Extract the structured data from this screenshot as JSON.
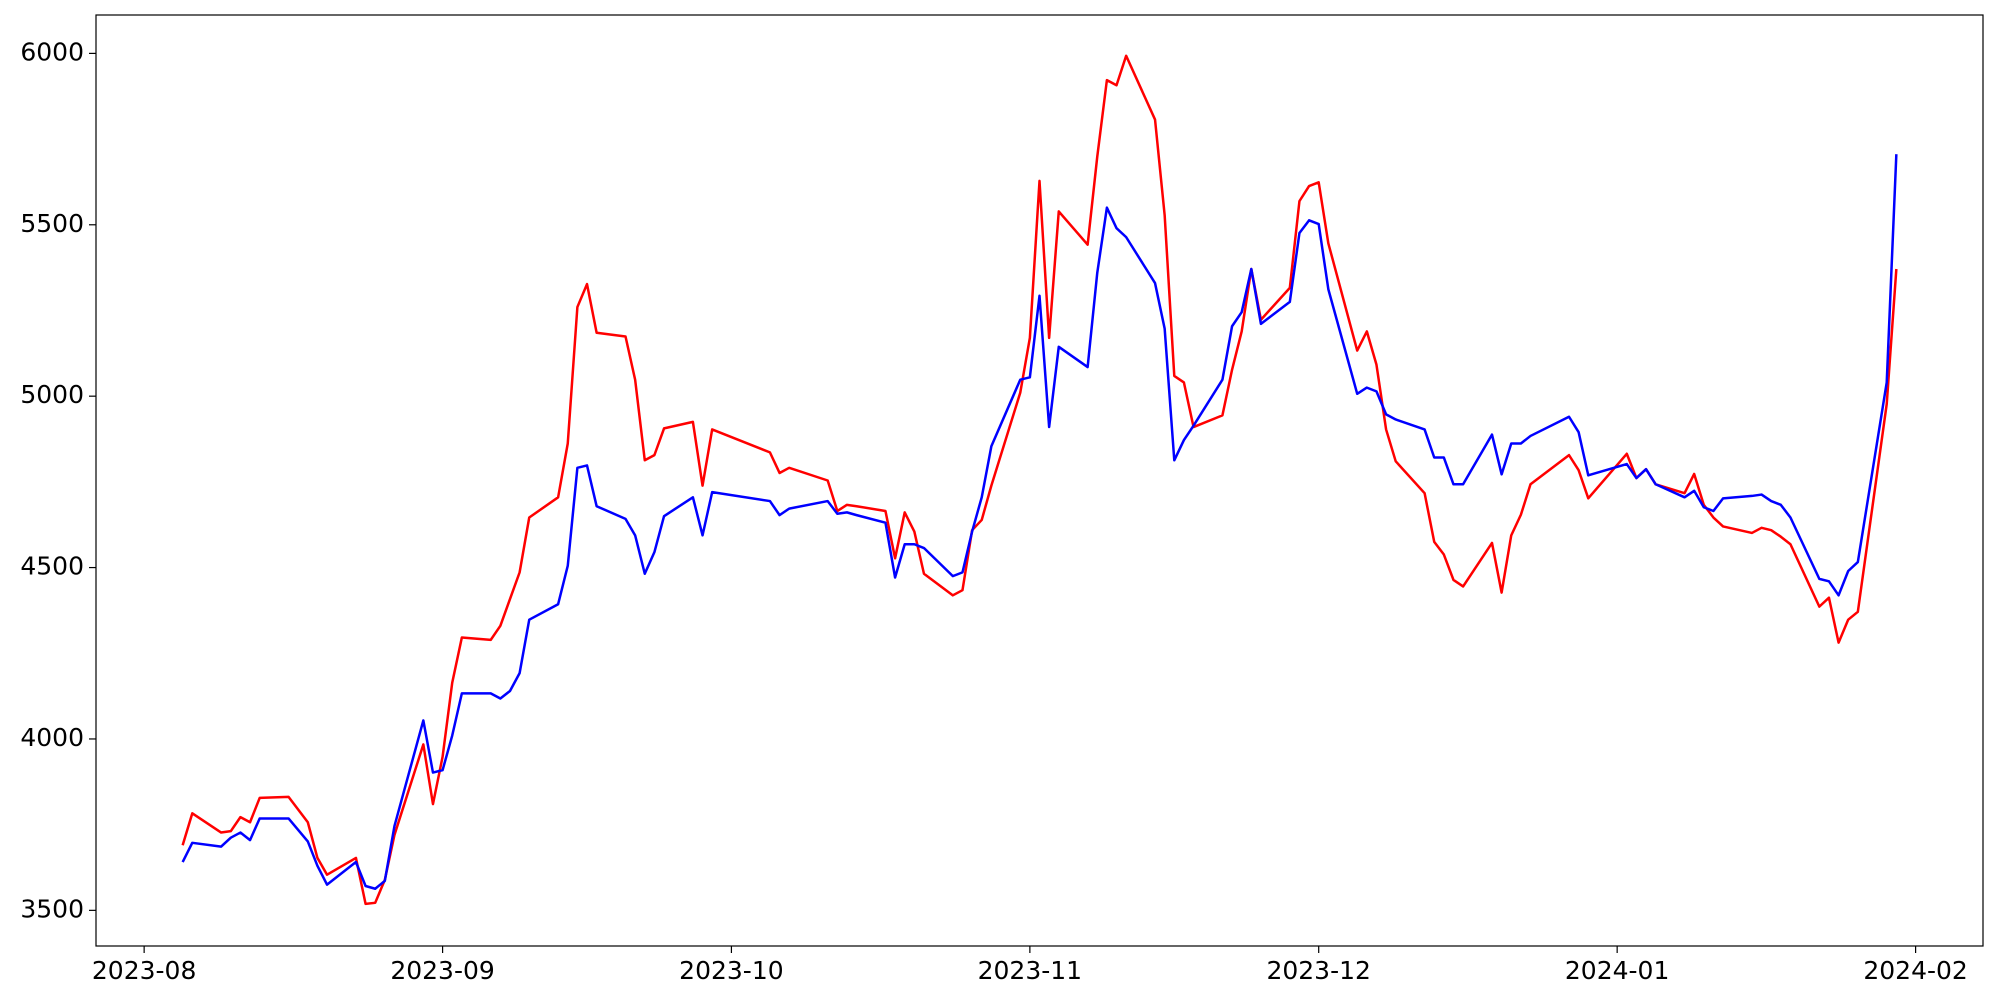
{
  "chart_data": {
    "type": "line",
    "x": [
      "2023-08-05",
      "2023-08-06",
      "2023-08-09",
      "2023-08-10",
      "2023-08-11",
      "2023-08-12",
      "2023-08-13",
      "2023-08-16",
      "2023-08-18",
      "2023-08-19",
      "2023-08-20",
      "2023-08-23",
      "2023-08-24",
      "2023-08-25",
      "2023-08-26",
      "2023-08-27",
      "2023-08-30",
      "2023-08-31",
      "2023-09-01",
      "2023-09-02",
      "2023-09-03",
      "2023-09-06",
      "2023-09-07",
      "2023-09-08",
      "2023-09-09",
      "2023-09-10",
      "2023-09-13",
      "2023-09-14",
      "2023-09-15",
      "2023-09-16",
      "2023-09-17",
      "2023-09-20",
      "2023-09-21",
      "2023-09-22",
      "2023-09-23",
      "2023-09-24",
      "2023-09-27",
      "2023-09-28",
      "2023-09-29",
      "2023-10-05",
      "2023-10-06",
      "2023-10-07",
      "2023-10-11",
      "2023-10-12",
      "2023-10-13",
      "2023-10-14",
      "2023-10-17",
      "2023-10-18",
      "2023-10-19",
      "2023-10-20",
      "2023-10-21",
      "2023-10-24",
      "2023-10-25",
      "2023-10-26",
      "2023-10-27",
      "2023-10-28",
      "2023-10-31",
      "2023-11-01",
      "2023-11-02",
      "2023-11-03",
      "2023-11-04",
      "2023-11-07",
      "2023-11-08",
      "2023-11-09",
      "2023-11-10",
      "2023-11-11",
      "2023-11-14",
      "2023-11-15",
      "2023-11-16",
      "2023-11-17",
      "2023-11-18",
      "2023-11-21",
      "2023-11-22",
      "2023-11-23",
      "2023-11-24",
      "2023-11-25",
      "2023-11-28",
      "2023-11-29",
      "2023-11-30",
      "2023-12-01",
      "2023-12-02",
      "2023-12-05",
      "2023-12-06",
      "2023-12-07",
      "2023-12-08",
      "2023-12-09",
      "2023-12-12",
      "2023-12-13",
      "2023-12-14",
      "2023-12-15",
      "2023-12-16",
      "2023-12-19",
      "2023-12-20",
      "2023-12-21",
      "2023-12-22",
      "2023-12-23",
      "2023-12-27",
      "2023-12-28",
      "2023-12-29",
      "2024-01-02",
      "2024-01-03",
      "2024-01-04",
      "2024-01-05",
      "2024-01-08",
      "2024-01-09",
      "2024-01-10",
      "2024-01-11",
      "2024-01-12",
      "2024-01-15",
      "2024-01-16",
      "2024-01-17",
      "2024-01-18",
      "2024-01-19",
      "2024-01-22",
      "2024-01-23",
      "2024-01-24",
      "2024-01-25",
      "2024-01-26",
      "2024-01-29",
      "2024-01-30"
    ],
    "series": [
      {
        "color": "#ff0000",
        "values": [
          3690,
          3783,
          3727,
          3731,
          3772,
          3757,
          3828,
          3831,
          3757,
          3653,
          3604,
          3653,
          3519,
          3522,
          3589,
          3720,
          3984,
          3810,
          3948,
          4164,
          4296,
          4289,
          4330,
          4408,
          4486,
          4646,
          4705,
          4862,
          5260,
          5327,
          5185,
          5174,
          5048,
          4813,
          4828,
          4906,
          4925,
          4739,
          4903,
          4836,
          4776,
          4791,
          4754,
          4665,
          4683,
          4679,
          4665,
          4527,
          4661,
          4605,
          4482,
          4419,
          4434,
          4609,
          4639,
          4739,
          5010,
          5170,
          5628,
          5170,
          5539,
          5442,
          5699,
          5922,
          5907,
          5993,
          5807,
          5528,
          5059,
          5040,
          4910,
          4944,
          5077,
          5189,
          5371,
          5223,
          5316,
          5569,
          5613,
          5624,
          5446,
          5133,
          5189,
          5092,
          4903,
          4810,
          4717,
          4575,
          4538,
          4464,
          4445,
          4572,
          4427,
          4594,
          4654,
          4743,
          4828,
          4784,
          4702,
          4832,
          4761,
          4787,
          4743,
          4717,
          4773,
          4683,
          4646,
          4620,
          4601,
          4616,
          4609,
          4590,
          4568,
          4386,
          4412,
          4281,
          4348,
          4371,
          4977,
          5371
        ]
      },
      {
        "color": "#0000ff",
        "values": [
          3641,
          3697,
          3686,
          3712,
          3727,
          3705,
          3768,
          3768,
          3701,
          3630,
          3575,
          3641,
          3571,
          3563,
          3586,
          3746,
          4054,
          3902,
          3909,
          4010,
          4133,
          4133,
          4118,
          4140,
          4192,
          4348,
          4393,
          4505,
          4791,
          4798,
          4679,
          4642,
          4594,
          4482,
          4545,
          4650,
          4705,
          4594,
          4720,
          4694,
          4653,
          4672,
          4694,
          4657,
          4661,
          4653,
          4631,
          4471,
          4568,
          4568,
          4557,
          4475,
          4486,
          4605,
          4705,
          4854,
          5048,
          5055,
          5293,
          4910,
          5144,
          5085,
          5360,
          5550,
          5490,
          5464,
          5330,
          5197,
          4813,
          4872,
          4914,
          5048,
          5204,
          5245,
          5371,
          5211,
          5275,
          5476,
          5513,
          5502,
          5312,
          5007,
          5025,
          5014,
          4947,
          4932,
          4903,
          4821,
          4821,
          4743,
          4743,
          4888,
          4772,
          4862,
          4862,
          4884,
          4940,
          4895,
          4769,
          4802,
          4761,
          4787,
          4743,
          4705,
          4724,
          4676,
          4665,
          4702,
          4709,
          4713,
          4694,
          4683,
          4646,
          4467,
          4460,
          4419,
          4490,
          4516,
          5040,
          5706
        ]
      }
    ],
    "xlim": [
      "2023-07-27",
      "2024-02-08"
    ],
    "xticks": [
      {
        "value": "2023-08-01",
        "label": "2023-08"
      },
      {
        "value": "2023-09-01",
        "label": "2023-09"
      },
      {
        "value": "2023-10-01",
        "label": "2023-10"
      },
      {
        "value": "2023-11-01",
        "label": "2023-11"
      },
      {
        "value": "2023-12-01",
        "label": "2023-12"
      },
      {
        "value": "2024-01-01",
        "label": "2024-01"
      },
      {
        "value": "2024-02-01",
        "label": "2024-02"
      }
    ],
    "ylim": [
      3396,
      6112
    ],
    "yticks": [
      3500,
      4000,
      4500,
      5000,
      5500,
      6000
    ],
    "grid": false
  }
}
